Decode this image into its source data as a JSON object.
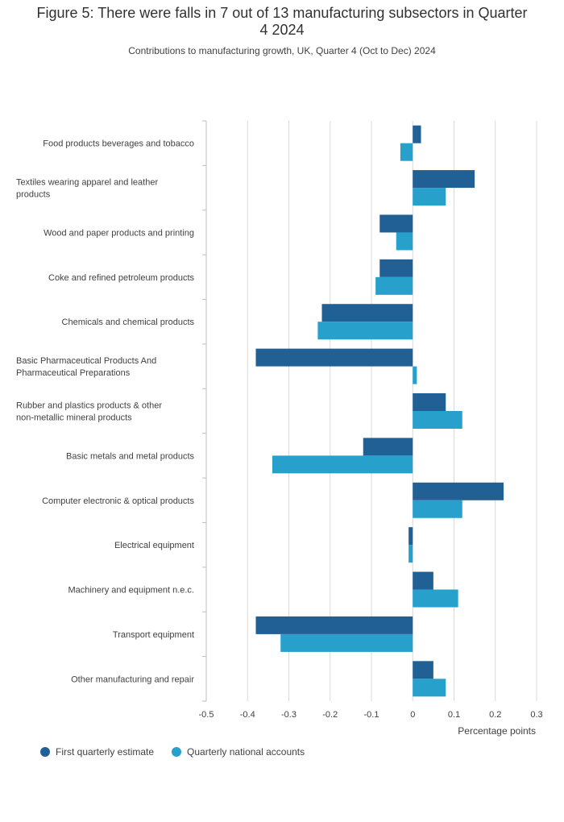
{
  "title": "Figure 5: There were falls in 7 out of 13 manufacturing subsectors in Quarter 4 2024",
  "subtitle": "Contributions to manufacturing growth, UK, Quarter 4 (Oct to Dec) 2024",
  "colors": {
    "first": "#206095",
    "qna": "#27a0cc",
    "grid": "#d9d9d9",
    "axis": "#bebebe"
  },
  "chart_data": {
    "type": "bar",
    "orientation": "horizontal",
    "categories": [
      "Food products beverages and tobacco",
      "Textiles wearing apparel and leather products",
      "Wood and paper products and printing",
      "Coke and refined petroleum products",
      "Chemicals and chemical products",
      "Basic Pharmaceutical Products And Pharmaceutical Preparations",
      "Rubber and plastics products & other non-metallic mineral products",
      "Basic metals and metal products",
      "Computer electronic & optical products",
      "Electrical equipment",
      "Machinery and equipment n.e.c.",
      "Transport equipment",
      "Other manufacturing and repair"
    ],
    "series": [
      {
        "name": "First quarterly estimate",
        "values": [
          0.02,
          0.15,
          -0.08,
          -0.08,
          -0.22,
          -0.38,
          0.08,
          -0.12,
          0.22,
          -0.01,
          0.05,
          -0.38,
          0.05
        ]
      },
      {
        "name": "Quarterly national accounts",
        "values": [
          -0.03,
          0.08,
          -0.04,
          -0.09,
          -0.23,
          0.01,
          0.12,
          -0.34,
          0.12,
          -0.01,
          0.11,
          -0.32,
          0.08
        ]
      }
    ],
    "xlabel": "Percentage points",
    "xlim": [
      -0.5,
      0.3
    ],
    "ticks": [
      -0.5,
      -0.4,
      -0.3,
      -0.2,
      -0.1,
      0,
      0.1,
      0.2,
      0.3
    ],
    "tick_labels": [
      "-0.5",
      "-0.4",
      "-0.3",
      "-0.2",
      "-0.1",
      "0",
      "0.1",
      "0.2",
      "0.3"
    ],
    "grid": true,
    "legend_position": "bottom-left"
  }
}
